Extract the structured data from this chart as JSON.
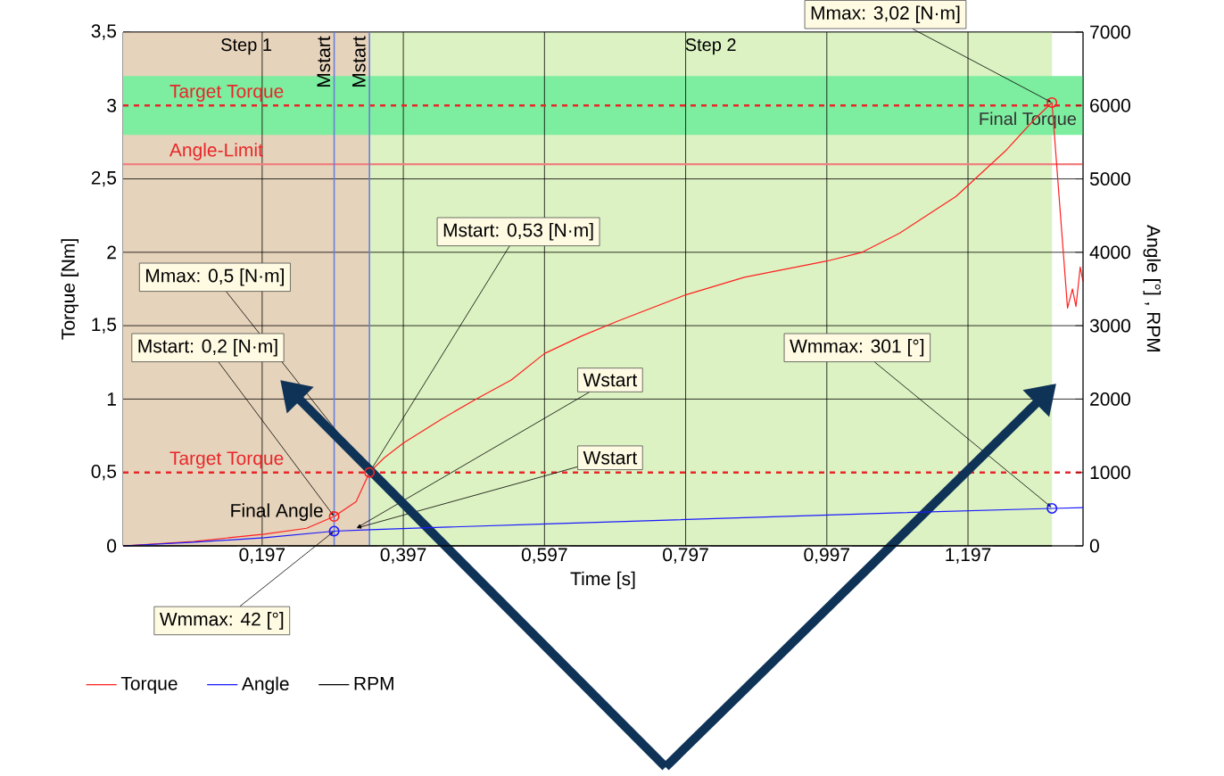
{
  "chart_data": {
    "type": "line",
    "xlabel": "Time [s]",
    "ylabel": "Torque [Nm]",
    "y2label": "Angle [°] , RPM",
    "xlim": [
      0,
      1.36
    ],
    "xticks": [
      {
        "value": 0.197,
        "label": "0,197"
      },
      {
        "value": 0.397,
        "label": "0,397"
      },
      {
        "value": 0.597,
        "label": "0,597"
      },
      {
        "value": 0.797,
        "label": "0,797"
      },
      {
        "value": 0.997,
        "label": "0,997"
      },
      {
        "value": 1.197,
        "label": "1,197"
      }
    ],
    "ylim": [
      0,
      3.5
    ],
    "yticks": [
      0,
      {
        "value": 0.5,
        "label": "0,5"
      },
      1,
      {
        "value": 1.5,
        "label": "1,5"
      },
      2,
      {
        "value": 2.5,
        "label": "2,5"
      },
      3,
      {
        "value": 3.5,
        "label": "3,5"
      }
    ],
    "y2lim": [
      0,
      7000
    ],
    "y2ticks": [
      0,
      1000,
      2000,
      3000,
      4000,
      5000,
      6000,
      7000
    ],
    "grid": true,
    "legend": "bottom left",
    "marker": "none",
    "line_style": "solid",
    "series": [
      {
        "name": "Torque",
        "color": "#ff2020",
        "x": [
          0,
          0.1,
          0.2,
          0.26,
          0.299,
          0.33,
          0.349,
          0.37,
          0.397,
          0.45,
          0.5,
          0.55,
          0.597,
          0.65,
          0.7,
          0.797,
          0.88,
          0.997,
          1.047,
          1.1,
          1.18,
          1.25,
          1.29,
          1.316,
          1.338,
          1.345,
          1.35,
          1.356,
          1.36
        ],
        "values": [
          0,
          0.03,
          0.08,
          0.12,
          0.2,
          0.3,
          0.5,
          0.6,
          0.7,
          0.86,
          1.0,
          1.13,
          1.31,
          1.43,
          1.53,
          1.71,
          1.83,
          1.94,
          2.0,
          2.13,
          2.38,
          2.69,
          2.9,
          3.02,
          1.62,
          1.75,
          1.63,
          1.9,
          1.8
        ]
      },
      {
        "name": "Angle",
        "color": "#1a1aff",
        "axis": "y2",
        "x": [
          0,
          0.1,
          0.2,
          0.299,
          0.35,
          0.6,
          0.9,
          1.1,
          1.316,
          1.36
        ],
        "values": [
          0,
          50,
          110,
          200,
          220,
          300,
          390,
          450,
          510,
          520
        ]
      },
      {
        "name": "RPM",
        "color": "#000000",
        "axis": "y2",
        "x": [
          0,
          1.316
        ],
        "values": [
          0,
          0
        ]
      },
      {
        "type": "scatter",
        "marker": "circle",
        "color": "#ff2020",
        "x": [
          0.299,
          0.349,
          1.316
        ],
        "values": [
          0.2,
          0.5,
          3.02
        ]
      },
      {
        "type": "scatter",
        "marker": "circle",
        "color": "#1a1aff",
        "axis": "y2",
        "x": [
          0.299,
          1.316
        ],
        "values": [
          200,
          510
        ]
      }
    ],
    "bands": [
      {
        "axis": "x",
        "from": 0,
        "to": 0.349,
        "label": "Step 1",
        "color": "#e6d3bb"
      },
      {
        "axis": "x",
        "from": 0.349,
        "to": 1.316,
        "label": "Step 2",
        "color": "#dcf2c2"
      },
      {
        "axis": "y",
        "from": 2.8,
        "to": 3.2,
        "label": "Final Torque",
        "color": "#7ded9f"
      }
    ],
    "ref_lines": [
      {
        "axis": "y",
        "value": 3,
        "label": "Target Torque",
        "color": "#e8272a",
        "line_style": "dashed"
      },
      {
        "axis": "y",
        "value": 0.5,
        "label": "Target Torque",
        "color": "#e8272a",
        "line_style": "dashed"
      },
      {
        "axis": "y",
        "value": 2.6,
        "label": "Angle-Limit",
        "color": "#f08080",
        "line_style": "solid"
      },
      {
        "axis": "x",
        "value": 0.299,
        "label": "Mstart",
        "color": "#6b7fd8",
        "line_style": "solid"
      },
      {
        "axis": "x",
        "value": 0.349,
        "label": "Mstart",
        "color": "#6b7fd8",
        "line_style": "solid"
      }
    ],
    "annotations": [
      {
        "text": "Mmax: 3,02 [N·m]",
        "x": 1.316,
        "y": 3.02
      },
      {
        "text": "Mstart: 0,53 [N·m]",
        "x": 0.349,
        "y": 0.5
      },
      {
        "text": "Mmax: 0,5 [N·m]",
        "x": 0.349,
        "y": 0.5
      },
      {
        "text": "Mstart: 0,2 [N·m]",
        "x": 0.299,
        "y": 0.2
      },
      {
        "text": "Wstart",
        "x": 0.33,
        "y": 0.12
      },
      {
        "text": "Wstart",
        "x": 0.33,
        "y": 0.12
      },
      {
        "text": "Wmmax: 301 [°]",
        "x": 1.316,
        "y": 0.26
      },
      {
        "text": "Wmmax: 42 [°]",
        "x": 0.299,
        "y": 0.1
      },
      {
        "text": "Final Angle",
        "x": 0.299,
        "y": 0.2
      }
    ]
  }
}
